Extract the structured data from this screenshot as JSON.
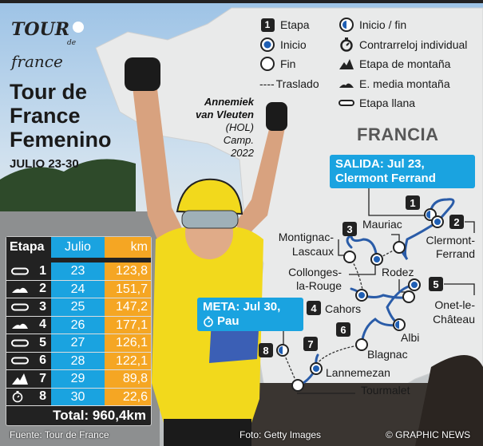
{
  "logo": {
    "text": "Tour de France"
  },
  "title": {
    "line1": "Tour de",
    "line2": "France",
    "line3": "Femenino",
    "dates": "JULIO 23-30"
  },
  "rider": {
    "name1": "Annemiek",
    "name2": "van Vleuten",
    "country": "(HOL)",
    "note1": "Camp.",
    "note2": "2022"
  },
  "legend": {
    "col1": [
      {
        "icon": "stage-number-box",
        "num": "1",
        "label": "Etapa"
      },
      {
        "icon": "start-marker",
        "label": "Inicio"
      },
      {
        "icon": "finish-marker",
        "label": "Fin"
      },
      {
        "icon": "transfer-dashed-line",
        "symbol": "----",
        "label": "Traslado"
      }
    ],
    "col2": [
      {
        "icon": "start-finish-marker",
        "label": "Inicio / fin"
      },
      {
        "icon": "stopwatch-icon",
        "label": "Contrarreloj individual"
      },
      {
        "icon": "mountain-icon",
        "label": "Etapa de montaña"
      },
      {
        "icon": "hill-icon",
        "label": "E. media montaña"
      },
      {
        "icon": "flat-icon",
        "label": "Etapa llana"
      }
    ]
  },
  "map": {
    "country": "FRANCIA",
    "start_callout": {
      "line1": "SALIDA: Jul 23,",
      "line2": "Clermont Ferrand"
    },
    "finish_callout": {
      "line1": "META: Jul 30,",
      "line2": "Pau"
    },
    "places": {
      "clermont1": "Clermont-",
      "clermont2": "Ferrand",
      "mauriac": "Mauriac",
      "montignac1": "Montignac-",
      "montignac2": "Lascaux",
      "collonges1": "Collonges-",
      "collonges2": "la-Rouge",
      "rodez": "Rodez",
      "onet1": "Onet-le-",
      "onet2": "Château",
      "cahors": "Cahors",
      "albi": "Albi",
      "blagnac": "Blagnac",
      "lannemezan": "Lannemezan",
      "tourmalet": "Tourmalet"
    },
    "stage_numbers": [
      "1",
      "2",
      "3",
      "4",
      "5",
      "6",
      "7",
      "8"
    ],
    "colors": {
      "route": "#2a5ca8",
      "callout": "#1aa3e0",
      "marker_blue": "#1f5fb4"
    }
  },
  "table": {
    "headers": [
      "Etapa",
      "Julio",
      "km"
    ],
    "rows": [
      {
        "type": "flat",
        "stage": "1",
        "day": "23",
        "km": "123,8"
      },
      {
        "type": "hill",
        "stage": "2",
        "day": "24",
        "km": "151,7"
      },
      {
        "type": "flat",
        "stage": "3",
        "day": "25",
        "km": "147,2"
      },
      {
        "type": "hill",
        "stage": "4",
        "day": "26",
        "km": "177,1"
      },
      {
        "type": "flat",
        "stage": "5",
        "day": "27",
        "km": "126,1"
      },
      {
        "type": "flat",
        "stage": "6",
        "day": "28",
        "km": "122,1"
      },
      {
        "type": "mountain",
        "stage": "7",
        "day": "29",
        "km": "89,8"
      },
      {
        "type": "time-trial",
        "stage": "8",
        "day": "30",
        "km": "22,6"
      }
    ],
    "total": "Total: 960,4km",
    "colors": {
      "julio": "#1aa3e0",
      "km": "#f5a623"
    }
  },
  "footer": {
    "source": "Fuente: Tour de France",
    "photo": "Foto: Getty Images",
    "credit": "© GRAPHIC NEWS"
  }
}
